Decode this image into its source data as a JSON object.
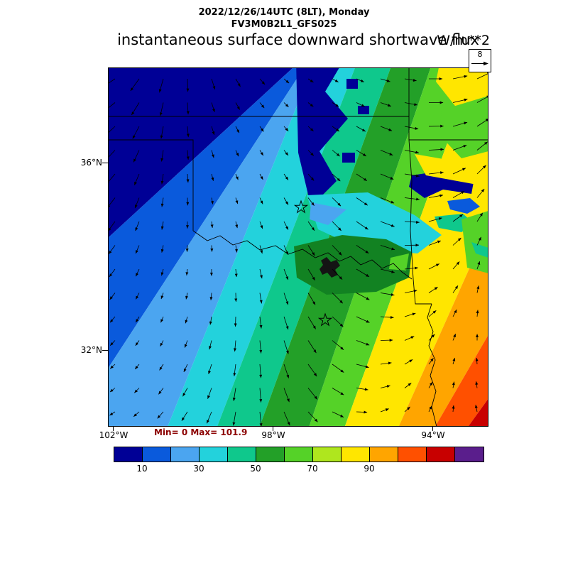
{
  "header": {
    "datetime_line": "2022/12/26/14UTC (8LT), Monday",
    "model_line": "FV3M0B2L1_GFS025",
    "title": "instantaneous surface downward shortwave flux",
    "units": "W/m**2"
  },
  "reference_vector": {
    "value": "8"
  },
  "stats": {
    "text": "Min= 0 Max= 101.9"
  },
  "axes": {
    "lat_ticks": [
      {
        "label": "36°N"
      },
      {
        "label": "32°N"
      }
    ],
    "lon_ticks": [
      {
        "label": "102°W"
      },
      {
        "label": "98°W"
      },
      {
        "label": "94°W"
      }
    ]
  },
  "chart_data": {
    "type": "heatmap",
    "title": "instantaneous surface downward shortwave flux",
    "subtitle": "FV3M0B2L1_GFS025",
    "valid_time": "2022/12/26/14UTC (8LT), Monday",
    "units": "W/m**2",
    "min": 0,
    "max": 101.9,
    "lat_gridline_labels": [
      "36°N",
      "32°N"
    ],
    "lon_gridline_labels": [
      "102°W",
      "98°W",
      "94°W"
    ],
    "extent_note": "Southern Great Plains: Oklahoma, Texas panhandle/north Texas, SE Kansas, SW Missouri, W Arkansas, NW Louisiana; state borders and Red River drawn",
    "colorbar": {
      "levels": [
        0,
        10,
        20,
        30,
        40,
        50,
        60,
        70,
        80,
        90,
        100,
        110,
        120,
        130
      ],
      "tick_labels": [
        10,
        30,
        50,
        70,
        90
      ],
      "colors": [
        "#000096",
        "#0A5ADC",
        "#4BA5F0",
        "#23D2DC",
        "#0FC88C",
        "#23A028",
        "#55D228",
        "#AFE61E",
        "#FFE600",
        "#FFA500",
        "#FF5000",
        "#C80000",
        "#5A1E8C"
      ]
    },
    "map_accents": {
      "dg": "#128222",
      "lake": "#141414"
    },
    "pattern": "Diagonal SW-NE oriented bands of flux increasing from ~0 W/m**2 (dark blue, pre-dawn northwest) to ~100 W/m**2 (dark red, southeast corner); jagged low-flux (cloud) patches east of 96W near 35N and a dark-green cloudy mass along the Red River; green/yellow mottling in the northeast quadrant",
    "wind_overlay": {
      "type": "quiver",
      "reference_label": "8",
      "flow": "arrows point down/down-left in the northwest, down-right in the center, rotating to up-right in the east and southeast"
    },
    "markers": [
      {
        "shape": "open-star",
        "location": "central Oklahoma area, north of Red River"
      },
      {
        "shape": "open-star",
        "location": "north Texas area, south of Red River"
      }
    ]
  }
}
